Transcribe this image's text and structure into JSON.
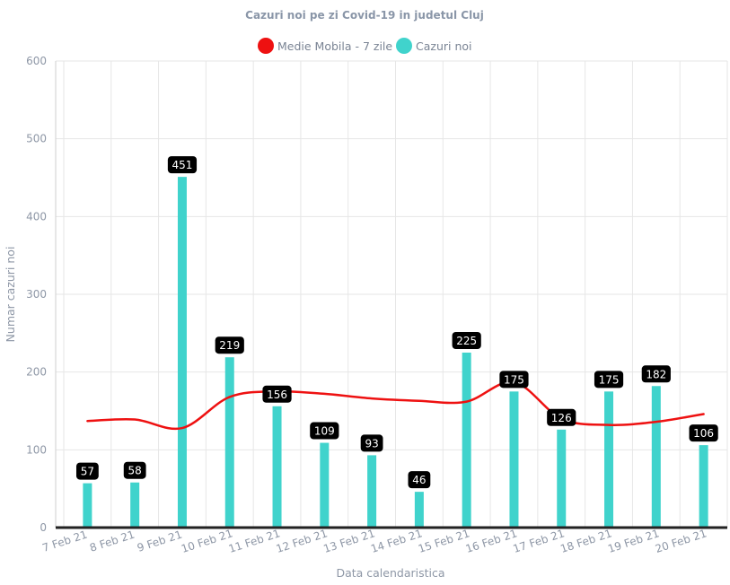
{
  "chart_data": {
    "type": "bar",
    "title": "Cazuri noi pe zi Covid-19 in judetul Cluj",
    "xlabel": "Data calendaristica",
    "ylabel": "Numar cazuri noi",
    "ylim": [
      0,
      600
    ],
    "yticks": [
      0,
      100,
      200,
      300,
      400,
      500,
      600
    ],
    "grid": true,
    "legend_position": "top-center",
    "categories": [
      "7 Feb 21",
      "8 Feb 21",
      "9 Feb 21",
      "10 Feb 21",
      "11 Feb 21",
      "12 Feb 21",
      "13 Feb 21",
      "14 Feb 21",
      "15 Feb 21",
      "16 Feb 21",
      "17 Feb 21",
      "18 Feb 21",
      "19 Feb 21",
      "20 Feb 21"
    ],
    "series": [
      {
        "name": "Medie Mobila - 7 zile",
        "type": "line",
        "color": "#ee1111",
        "values": [
          137,
          139,
          128,
          168,
          175,
          172,
          166,
          163,
          162,
          187,
          140,
          132,
          136,
          146
        ]
      },
      {
        "name": "Cazuri noi",
        "type": "bar",
        "color": "#40d3cc",
        "values": [
          57,
          58,
          451,
          219,
          156,
          109,
          93,
          46,
          225,
          175,
          126,
          175,
          182,
          106
        ]
      }
    ]
  }
}
